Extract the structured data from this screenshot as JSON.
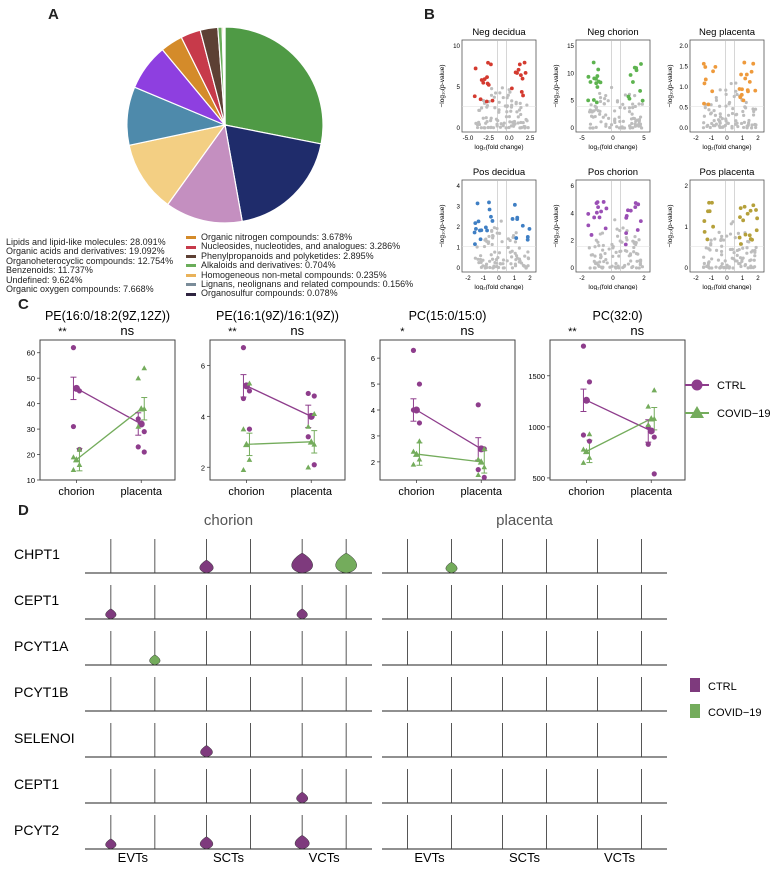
{
  "panels": {
    "a": "A",
    "b": "B",
    "c": "C",
    "d": "D"
  },
  "chart_data": [
    {
      "type": "pie",
      "panel": "A",
      "slices_clockwise": [
        {
          "label": "Lipids and lipid-like molecules",
          "value": 28.091,
          "color": "#4f9a45"
        },
        {
          "label": "Organic acids and derivatives",
          "value": 19.092,
          "color": "#1f2c6b"
        },
        {
          "label": "Organoheterocyclic compounds",
          "value": 12.754,
          "color": "#c48fc0"
        },
        {
          "label": "Benzenoids",
          "value": 11.737,
          "color": "#f3cf83"
        },
        {
          "label": "Undefined",
          "value": 9.624,
          "color": "#4e8aab"
        },
        {
          "label": "Organic oxygen compounds",
          "value": 7.668,
          "color": "#8e3fe0"
        },
        {
          "label": "Organic nitrogen compounds",
          "value": 3.678,
          "color": "#d48b2a"
        },
        {
          "label": "Nucleosides, nucleotides, and analogues",
          "value": 3.286,
          "color": "#c73a4a"
        },
        {
          "label": "Phenylpropanoids and polyketides",
          "value": 2.895,
          "color": "#5d4034"
        },
        {
          "label": "Alkaloids and derivatives",
          "value": 0.704,
          "color": "#6aad5a"
        },
        {
          "label": "Homogeneous non-metal compounds",
          "value": 0.235,
          "color": "#e9b25a"
        },
        {
          "label": "Lignans, neolignans and related compounds",
          "value": 0.156,
          "color": "#7a8c99"
        },
        {
          "label": "Organosulfur compounds",
          "value": 0.078,
          "color": "#2e2440"
        }
      ],
      "legend_left": [
        "Lipids and lipid-like molecules: 28.091%",
        "Organic acids and derivatives: 19.092%",
        "Organoheterocyclic compounds: 12.754%",
        "Benzenoids: 11.737%",
        "Undefined: 9.624%",
        "Organic oxygen compounds: 7.668%"
      ],
      "legend_right": [
        {
          "text": "Organic nitrogen compounds: 3.678%",
          "color": "#d48b2a"
        },
        {
          "text": "Nucleosides, nucleotides, and analogues: 3.286%",
          "color": "#c73a4a"
        },
        {
          "text": "Phenylpropanoids and polyketides: 2.895%",
          "color": "#5d4034"
        },
        {
          "text": "Alkaloids and derivatives: 0.704%",
          "color": "#6aad5a"
        },
        {
          "text": "Homogeneous non-metal compounds: 0.235%",
          "color": "#e9b25a"
        },
        {
          "text": "Lignans, neolignans and related compounds: 0.156%",
          "color": "#7a8c99"
        },
        {
          "text": "Organosulfur compounds: 0.078%",
          "color": "#2e2440"
        }
      ]
    },
    {
      "type": "scatter",
      "panel": "B",
      "xlabel": "log₂(fold change)",
      "ylabel": "−log₁₀(p-value)",
      "grid": false,
      "plots": [
        {
          "title": "Neg decidua",
          "color": "#d43a2f",
          "xticks": [
            "-5.0",
            "-2.5",
            "0.0",
            "2.5"
          ],
          "yticks": [
            "0",
            "5",
            "10"
          ]
        },
        {
          "title": "Neg chorion",
          "color": "#5db34f",
          "xticks": [
            "-5",
            "0",
            "5"
          ],
          "yticks": [
            "0",
            "5",
            "10",
            "15"
          ]
        },
        {
          "title": "Neg placenta",
          "color": "#ee9a3c",
          "xticks": [
            "-2",
            "-1",
            "0",
            "1",
            "2"
          ],
          "yticks": [
            "0.0",
            "0.5",
            "1.0",
            "1.5",
            "2.0"
          ]
        },
        {
          "title": "Pos decidua",
          "color": "#3f7fc4",
          "xticks": [
            "-2",
            "-1",
            "0",
            "1",
            "2"
          ],
          "yticks": [
            "0",
            "1",
            "2",
            "3",
            "4"
          ]
        },
        {
          "title": "Pos chorion",
          "color": "#9a4fb5",
          "xticks": [
            "-2",
            "0",
            "2"
          ],
          "yticks": [
            "0",
            "2",
            "4",
            "6"
          ]
        },
        {
          "title": "Pos placenta",
          "color": "#b5a03a",
          "xticks": [
            "-2",
            "-1",
            "0",
            "1",
            "2"
          ],
          "yticks": [
            "0",
            "1",
            "2"
          ]
        }
      ]
    },
    {
      "type": "line",
      "panel": "C",
      "categories": [
        "chorion",
        "placenta"
      ],
      "legend": [
        {
          "name": "CTRL",
          "color": "#8e3d8c"
        },
        {
          "name": "COVID−19",
          "color": "#74ac5c"
        }
      ],
      "plots": [
        {
          "title": "PE(16:0/18:2(9Z,12Z))",
          "sig": [
            "**",
            "ns"
          ],
          "yticks": [
            10,
            20,
            30,
            40,
            50,
            60
          ],
          "ylim": [
            10,
            65
          ],
          "ctrl_mean": [
            46,
            32
          ],
          "covid_mean": [
            18,
            38
          ],
          "ctrl_points": [
            [
              62,
              45,
              31,
              22
            ],
            [
              34,
              29,
              23,
              21
            ]
          ],
          "covid_points": [
            [
              22,
              19,
              16,
              14
            ],
            [
              54,
              50,
              38,
              31
            ]
          ]
        },
        {
          "title": "PE(16:1(9Z)/16:1(9Z))",
          "sig": [
            "**",
            "ns"
          ],
          "yticks": [
            2,
            4,
            6
          ],
          "ylim": [
            1.5,
            7
          ],
          "ctrl_mean": [
            5.2,
            4.0
          ],
          "covid_mean": [
            2.9,
            3.0
          ],
          "ctrl_points": [
            [
              6.7,
              5.0,
              4.7,
              3.5
            ],
            [
              4.9,
              4.8,
              3.2,
              2.1
            ]
          ],
          "covid_points": [
            [
              5.3,
              3.5,
              2.3,
              1.9
            ],
            [
              4.1,
              3.6,
              2.9,
              2.0
            ]
          ]
        },
        {
          "title": "PC(15:0/15:0)",
          "sig": [
            "*",
            "ns"
          ],
          "yticks": [
            2,
            3,
            4,
            5,
            6
          ],
          "ylim": [
            1.3,
            6.7
          ],
          "ctrl_mean": [
            4.0,
            2.5
          ],
          "covid_mean": [
            2.3,
            2.0
          ],
          "ctrl_points": [
            [
              6.3,
              5.0,
              4.0,
              3.5
            ],
            [
              4.2,
              2.5,
              1.7,
              1.4
            ]
          ],
          "covid_points": [
            [
              2.8,
              2.4,
              2.1,
              1.9
            ],
            [
              2.5,
              2.1,
              1.8,
              1.5
            ]
          ]
        },
        {
          "title": "PC(32:0)",
          "sig": [
            "**",
            "ns"
          ],
          "yticks": [
            500,
            1000,
            1500
          ],
          "ylim": [
            480,
            1850
          ],
          "ctrl_mean": [
            1260,
            960
          ],
          "covid_mean": [
            760,
            1080
          ],
          "ctrl_points": [
            [
              1790,
              1440,
              920,
              860
            ],
            [
              1000,
              900,
              830,
              540
            ]
          ],
          "covid_points": [
            [
              930,
              780,
              700,
              650
            ],
            [
              1360,
              1200,
              1080,
              1020
            ]
          ]
        }
      ]
    },
    {
      "type": "violin",
      "panel": "D",
      "facets": [
        "chorion",
        "placenta"
      ],
      "cell_types": [
        "EVTs",
        "SCTs",
        "VCTs"
      ],
      "genes": [
        "CHPT1",
        "CEPT1",
        "PCYT1A",
        "PCYT1B",
        "SELENOI",
        "CEPT1",
        "PCYT2"
      ],
      "legend": [
        {
          "name": "CTRL",
          "color": "#7e3a7d"
        },
        {
          "name": "COVID−19",
          "color": "#74ac5c"
        }
      ],
      "violins": [
        {
          "gene_row": 0,
          "facet": "chorion",
          "cell": "SCTs",
          "group": "CTRL",
          "size": 0.5
        },
        {
          "gene_row": 0,
          "facet": "chorion",
          "cell": "VCTs",
          "group": "CTRL",
          "size": 1.0
        },
        {
          "gene_row": 0,
          "facet": "chorion",
          "cell": "VCTs",
          "group": "COVID−19",
          "size": 1.0
        },
        {
          "gene_row": 0,
          "facet": "placenta",
          "cell": "EVTs",
          "group": "COVID−19",
          "size": 0.35
        },
        {
          "gene_row": 1,
          "facet": "chorion",
          "cell": "EVTs",
          "group": "CTRL",
          "size": 0.3
        },
        {
          "gene_row": 1,
          "facet": "chorion",
          "cell": "VCTs",
          "group": "CTRL",
          "size": 0.3
        },
        {
          "gene_row": 2,
          "facet": "chorion",
          "cell": "EVTs",
          "group": "COVID−19",
          "size": 0.3
        },
        {
          "gene_row": 4,
          "facet": "chorion",
          "cell": "SCTs",
          "group": "CTRL",
          "size": 0.4
        },
        {
          "gene_row": 5,
          "facet": "chorion",
          "cell": "VCTs",
          "group": "CTRL",
          "size": 0.35
        },
        {
          "gene_row": 6,
          "facet": "chorion",
          "cell": "EVTs",
          "group": "CTRL",
          "size": 0.3
        },
        {
          "gene_row": 6,
          "facet": "chorion",
          "cell": "SCTs",
          "group": "CTRL",
          "size": 0.45
        },
        {
          "gene_row": 6,
          "facet": "chorion",
          "cell": "VCTs",
          "group": "CTRL",
          "size": 0.55
        }
      ]
    }
  ]
}
